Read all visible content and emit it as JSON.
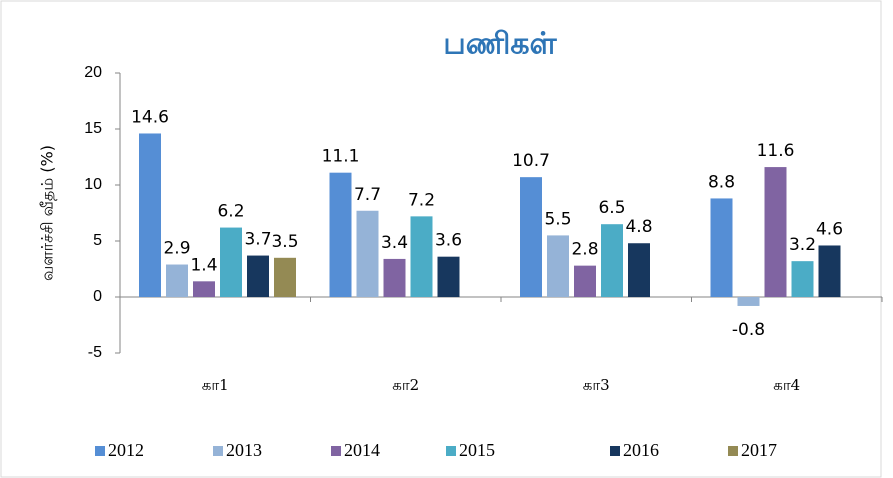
{
  "chart_data": {
    "type": "bar",
    "title": "பணிகள்",
    "y_label": "வளர்ச்சி வீதம் (%)",
    "categories": [
      "கா1",
      "கா2",
      "கா3",
      "கா4"
    ],
    "series": [
      {
        "name": "2012",
        "color": "#558ed5",
        "values": [
          14.6,
          11.1,
          10.7,
          8.8
        ]
      },
      {
        "name": "2013",
        "color": "#95b3d7",
        "values": [
          2.9,
          7.7,
          5.5,
          -0.8
        ]
      },
      {
        "name": "2014",
        "color": "#8064a2",
        "values": [
          1.4,
          3.4,
          2.8,
          11.6
        ]
      },
      {
        "name": "2015",
        "color": "#4bacc6",
        "values": [
          6.2,
          7.2,
          6.5,
          3.2
        ]
      },
      {
        "name": "2016",
        "color": "#17375e",
        "values": [
          3.7,
          3.6,
          4.8,
          4.6
        ]
      },
      {
        "name": "2017",
        "color": "#948a54",
        "values": [
          3.5,
          null,
          null,
          null
        ]
      }
    ],
    "ylim": [
      -5,
      20
    ],
    "yticks": [
      -5,
      0,
      5,
      10,
      15,
      20
    ],
    "grid": false,
    "legend": "bottom"
  }
}
